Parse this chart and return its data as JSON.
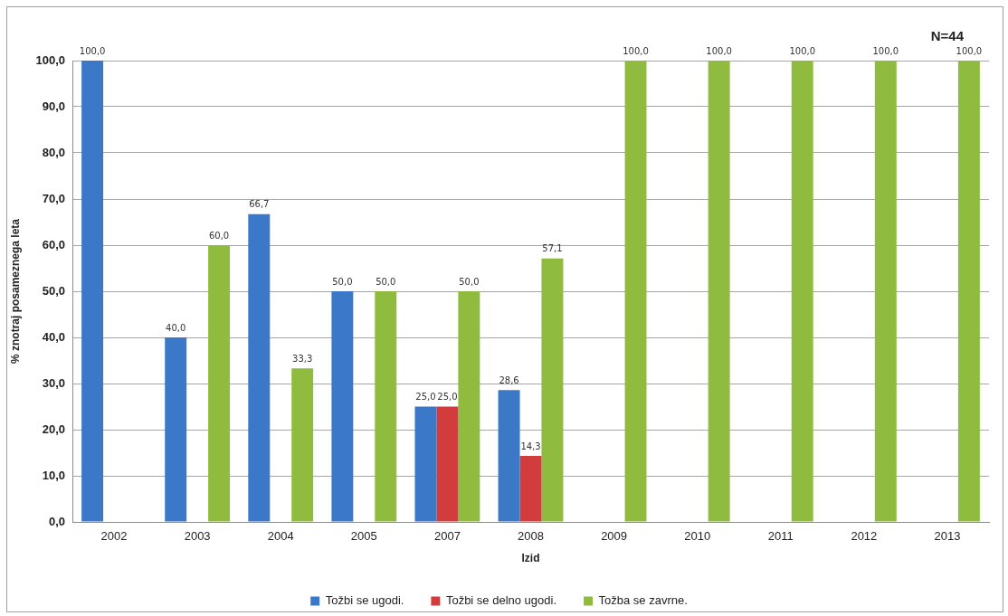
{
  "chart_data": {
    "type": "bar",
    "xlabel": "Izid",
    "ylabel": "% znotraj posameznega leta",
    "categories": [
      "2002",
      "2003",
      "2004",
      "2005",
      "2007",
      "2008",
      "2009",
      "2010",
      "2011",
      "2012",
      "2013"
    ],
    "series": [
      {
        "name": "Tožbi se ugodi.",
        "color": "#3b78c8",
        "values": [
          100,
          40,
          66.7,
          50,
          25,
          28.6,
          null,
          null,
          null,
          null,
          null
        ],
        "value_labels": [
          "100,0",
          "40,0",
          "66,7",
          "50,0",
          "25,0",
          "28,6",
          null,
          null,
          null,
          null,
          null
        ]
      },
      {
        "name": "Tožbi se delno ugodi.",
        "color": "#d23c3c",
        "values": [
          null,
          null,
          null,
          null,
          25,
          14.3,
          null,
          null,
          null,
          null,
          null
        ],
        "value_labels": [
          null,
          null,
          null,
          null,
          "25,0",
          "14,3",
          null,
          null,
          null,
          null,
          null
        ]
      },
      {
        "name": "Tožba se zavrne.",
        "color": "#8fbc3f",
        "values": [
          null,
          60,
          33.3,
          50,
          50,
          57.1,
          100,
          100,
          100,
          100,
          100
        ],
        "value_labels": [
          null,
          "60,0",
          "33,3",
          "50,0",
          "50,0",
          "57,1",
          "100,0",
          "100,0",
          "100,0",
          "100,0",
          "100,0"
        ]
      }
    ],
    "ylim": [
      0,
      100
    ],
    "yticks": [
      {
        "value": 0,
        "label": "0,0"
      },
      {
        "value": 10,
        "label": "10,0"
      },
      {
        "value": 20,
        "label": "20,0"
      },
      {
        "value": 30,
        "label": "30,0"
      },
      {
        "value": 40,
        "label": "40,0"
      },
      {
        "value": 50,
        "label": "50,0"
      },
      {
        "value": 60,
        "label": "60,0"
      },
      {
        "value": 70,
        "label": "70,0"
      },
      {
        "value": 80,
        "label": "80,0"
      },
      {
        "value": 90,
        "label": "90,0"
      },
      {
        "value": 100,
        "label": "100,0"
      }
    ],
    "grid": "y",
    "legend": "bottom",
    "annotations": [
      "N=44"
    ]
  }
}
